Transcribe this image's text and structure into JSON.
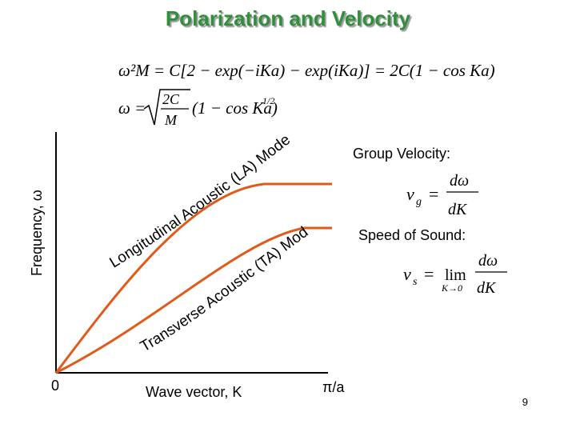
{
  "title": "Polarization and Velocity",
  "equations": {
    "dispersion_lhs": "ω²M = C[2 − exp(−iKa) − exp(iKa)] = 2C(1 − cos Ka)",
    "omega_lhs": "ω =",
    "omega_frac_num": "2C",
    "omega_frac_den": "M",
    "omega_rest": "(1 − cos Ka)",
    "omega_exp": "1/2",
    "group_velocity_lhs": "v",
    "group_velocity_sub": "g",
    "speed_sound_lhs": "v",
    "speed_sound_sub": "s",
    "speed_sound_lim": "lim",
    "speed_sound_lim_sub": "K→0",
    "d_omega": "dω",
    "dK": "dK",
    "eq_sign": "="
  },
  "labels": {
    "y_axis": "Frequency, ω",
    "x_axis": "Wave vector, K",
    "origin": "0",
    "x_end": "π/a",
    "group_velocity": "Group Velocity:",
    "speed_of_sound": "Speed of Sound:",
    "la_mode": "Longitudinal Acoustic (LA) Mode",
    "ta_mode": "Transverse Acoustic (TA) Mode"
  },
  "colors": {
    "la_curve": "#e05a1a",
    "ta_curve": "#e05a1a",
    "axes": "#000000",
    "title": "#2f8f3a"
  },
  "page_number": "9"
}
